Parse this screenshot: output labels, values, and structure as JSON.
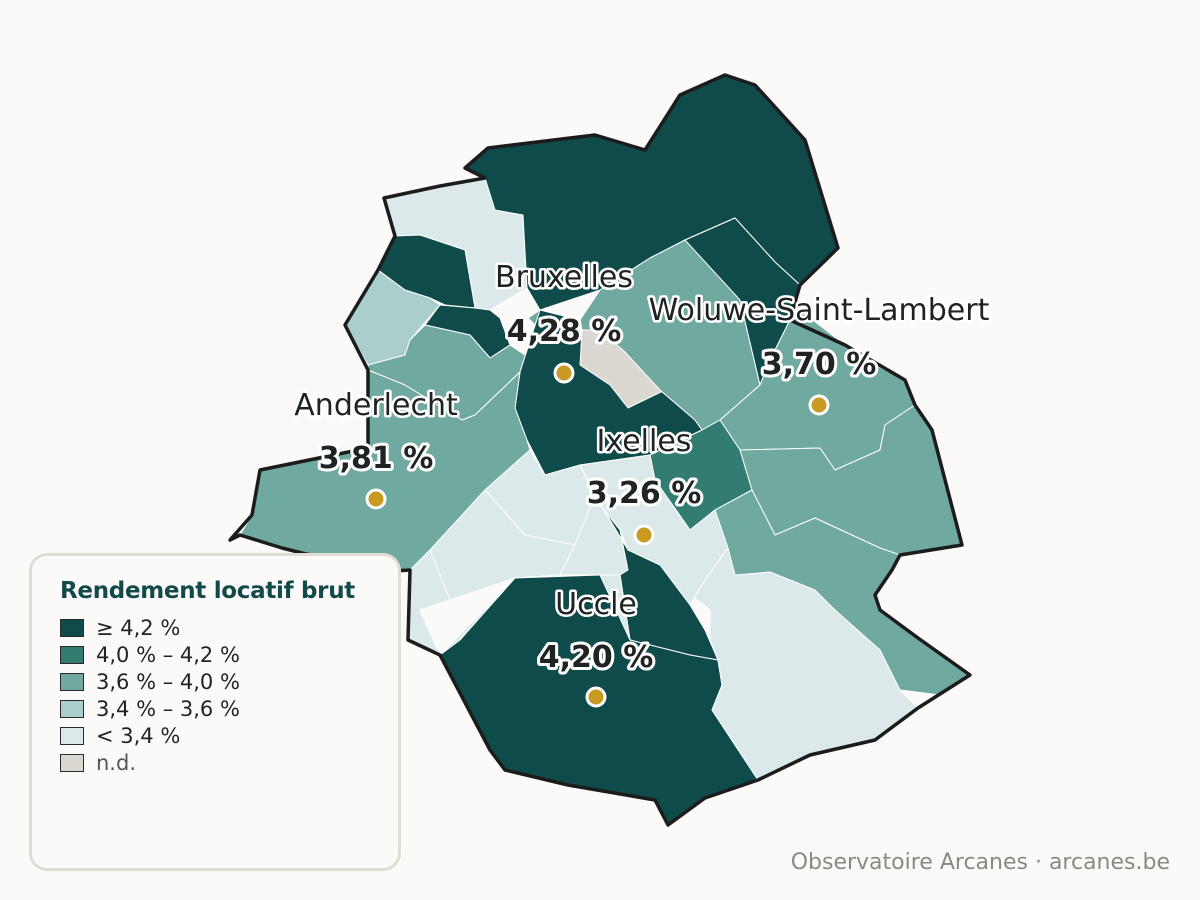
{
  "legend": {
    "title": "Rendement locatif brut",
    "items": [
      {
        "label": "≥ 4,2 %",
        "color": "#104b4b"
      },
      {
        "label": "4,0 % – 4,2 %",
        "color": "#327c72"
      },
      {
        "label": "3,6 % – 4,0 %",
        "color": "#6fa9a0"
      },
      {
        "label": "3,4 % – 3,6 %",
        "color": "#a9cecb"
      },
      {
        "label": "< 3,4 %",
        "color": "#dbe9ea"
      },
      {
        "label": "n.d.",
        "color": "#dad8d1"
      }
    ]
  },
  "cities": [
    {
      "name": "Bruxelles",
      "value": "4,28 %"
    },
    {
      "name": "Woluwe-Saint-Lambert",
      "value": "3,70 %"
    },
    {
      "name": "Anderlecht",
      "value": "3,81 %"
    },
    {
      "name": "Ixelles",
      "value": "3,26 %"
    },
    {
      "name": "Uccle",
      "value": "4,20 %"
    }
  ],
  "footer": {
    "source": "Observatoire Arcanes · arcanes.be"
  },
  "colors": {
    "marker": "#c99a22",
    "outline": "#1c1c1c",
    "background": "#fbfaf8"
  }
}
